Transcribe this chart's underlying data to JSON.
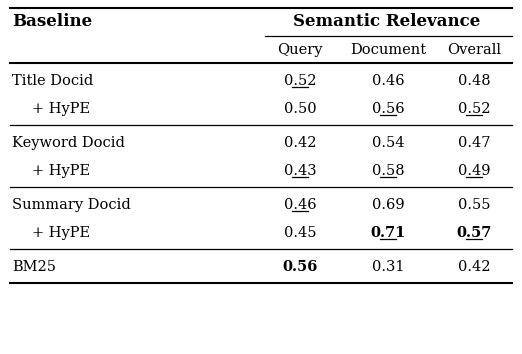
{
  "title": "Semantic Relevance",
  "rows": [
    {
      "label": "Title Docid",
      "indent": false,
      "query": "0.52",
      "document": "0.46",
      "overall": "0.48",
      "ul_q": true,
      "ul_d": false,
      "ul_o": false,
      "bold_q": false,
      "bold_d": false,
      "bold_o": false
    },
    {
      "label": "+ HyPE",
      "indent": true,
      "query": "0.50",
      "document": "0.56",
      "overall": "0.52",
      "ul_q": false,
      "ul_d": true,
      "ul_o": true,
      "bold_q": false,
      "bold_d": false,
      "bold_o": false
    },
    {
      "label": "Keyword Docid",
      "indent": false,
      "query": "0.42",
      "document": "0.54",
      "overall": "0.47",
      "ul_q": false,
      "ul_d": false,
      "ul_o": false,
      "bold_q": false,
      "bold_d": false,
      "bold_o": false
    },
    {
      "label": "+ HyPE",
      "indent": true,
      "query": "0.43",
      "document": "0.58",
      "overall": "0.49",
      "ul_q": true,
      "ul_d": true,
      "ul_o": true,
      "bold_q": false,
      "bold_d": false,
      "bold_o": false
    },
    {
      "label": "Summary Docid",
      "indent": false,
      "query": "0.46",
      "document": "0.69",
      "overall": "0.55",
      "ul_q": true,
      "ul_d": false,
      "ul_o": false,
      "bold_q": false,
      "bold_d": false,
      "bold_o": false
    },
    {
      "label": "+ HyPE",
      "indent": true,
      "query": "0.45",
      "document": "0.71",
      "overall": "0.57",
      "ul_q": false,
      "ul_d": true,
      "ul_o": true,
      "bold_q": false,
      "bold_d": true,
      "bold_o": true
    },
    {
      "label": "BM25",
      "indent": false,
      "query": "0.56",
      "document": "0.31",
      "overall": "0.42",
      "ul_q": false,
      "ul_d": false,
      "ul_o": false,
      "bold_q": true,
      "bold_d": false,
      "bold_o": false
    }
  ],
  "group_sep_before": [
    2,
    4,
    6
  ],
  "bg_color": "#ffffff"
}
